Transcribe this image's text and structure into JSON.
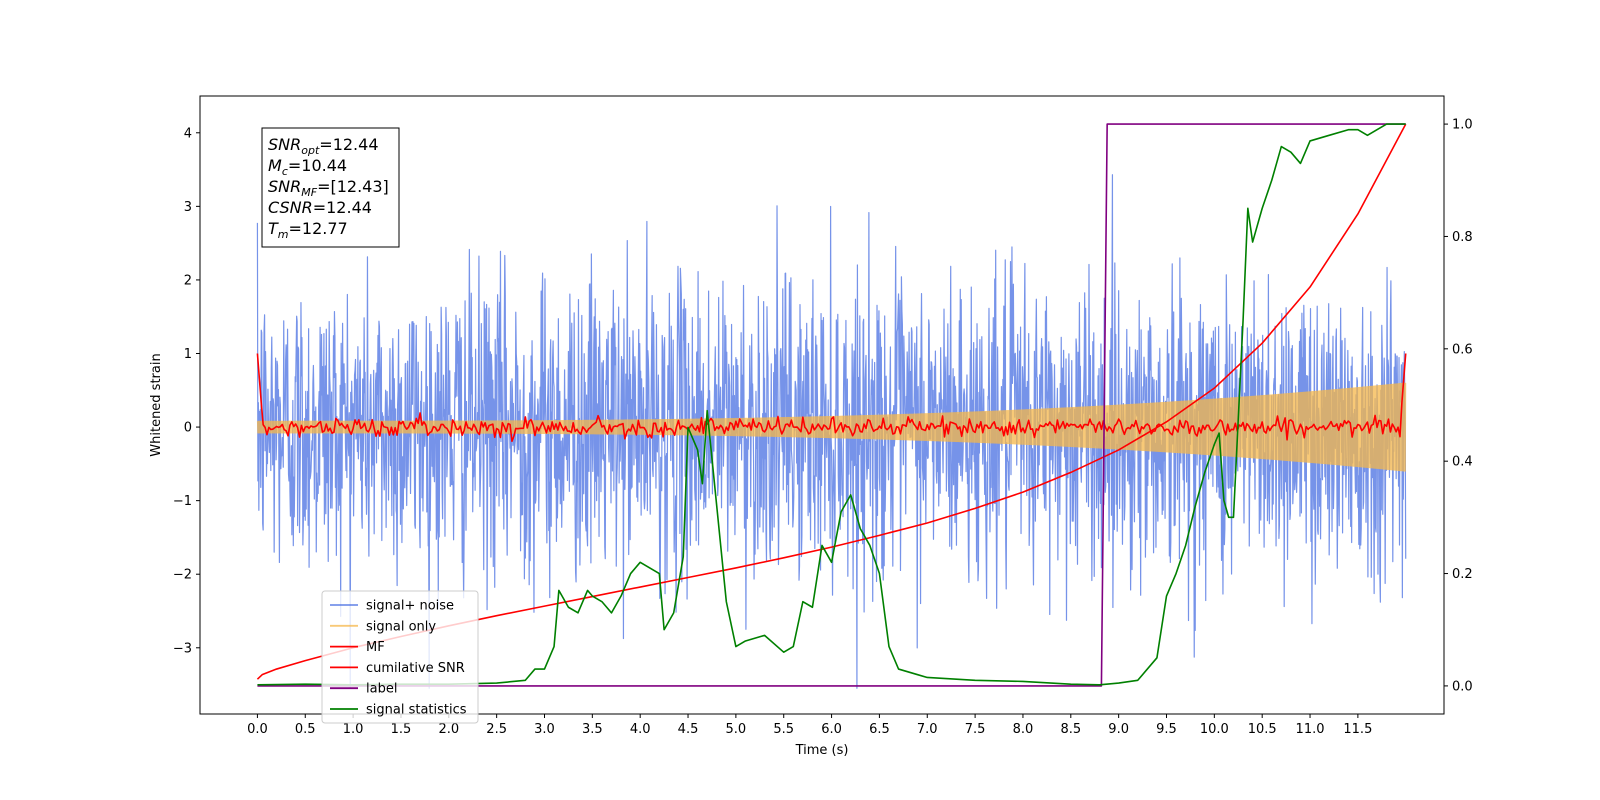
{
  "chart_data": {
    "type": "line",
    "title": "",
    "xlabel": "Time (s)",
    "ylabel": "Whitened strain",
    "y2label": "",
    "xlim": [
      -0.6,
      12.4
    ],
    "ylim": [
      -3.9,
      4.5
    ],
    "y2lim": [
      -0.05,
      1.05
    ],
    "x_ticks": [
      "0.0",
      "0.5",
      "1.0",
      "1.5",
      "2.0",
      "2.5",
      "3.0",
      "3.5",
      "4.0",
      "4.5",
      "5.0",
      "5.5",
      "6.0",
      "6.5",
      "7.0",
      "7.5",
      "8.0",
      "8.5",
      "9.0",
      "9.5",
      "10.0",
      "10.5",
      "11.0",
      "11.5"
    ],
    "y_ticks": [
      "−3",
      "−2",
      "−1",
      "0",
      "1",
      "2",
      "3",
      "4"
    ],
    "y2_ticks": [
      "0.0",
      "0.2",
      "0.4",
      "0.6",
      "0.8",
      "1.0"
    ],
    "grid": false,
    "legend_position": "lower-left",
    "annotation": {
      "lines": [
        {
          "base": "SNR",
          "sub": "opt",
          "value": "=12.44"
        },
        {
          "base": "M",
          "sub": "c",
          "value": "=10.44"
        },
        {
          "base": "SNR",
          "sub": "MF",
          "value": "=[12.43]"
        },
        {
          "base": "CSNR",
          "sub": "",
          "value": "=12.44"
        },
        {
          "base": "T",
          "sub": "m",
          "value": "=12.77"
        }
      ]
    },
    "series": [
      {
        "name": "signal+ noise",
        "axis": "left",
        "color": "#4169e1",
        "kind": "noise",
        "sigma": 1.0,
        "range": [
          0,
          12
        ]
      },
      {
        "name": "signal only",
        "axis": "left",
        "color": "#f5b74a",
        "kind": "chirp",
        "amp_start": 0.08,
        "amp_end": 0.6,
        "range": [
          0,
          12
        ]
      },
      {
        "name": "MF",
        "axis": "left",
        "color": "#ff0000",
        "kind": "mf",
        "start_value": 1.0,
        "end_value": 1.0,
        "range": [
          0,
          12
        ]
      },
      {
        "name": "cumilative SNR",
        "axis": "right",
        "color": "#ff0000",
        "kind": "curve",
        "x": [
          0.0,
          0.05,
          0.2,
          0.5,
          1.0,
          1.5,
          2.0,
          2.5,
          3.0,
          3.5,
          4.0,
          4.5,
          5.0,
          5.5,
          6.0,
          6.5,
          7.0,
          7.5,
          8.0,
          8.5,
          9.0,
          9.5,
          10.0,
          10.5,
          11.0,
          11.5,
          12.0
        ],
        "y": [
          0.012,
          0.02,
          0.03,
          0.045,
          0.068,
          0.088,
          0.107,
          0.125,
          0.142,
          0.159,
          0.176,
          0.193,
          0.21,
          0.228,
          0.247,
          0.268,
          0.29,
          0.316,
          0.345,
          0.38,
          0.42,
          0.47,
          0.53,
          0.61,
          0.71,
          0.84,
          1.0
        ]
      },
      {
        "name": "label",
        "axis": "right",
        "color": "#800080",
        "kind": "curve",
        "x": [
          0.0,
          8.82,
          8.88,
          12.0
        ],
        "y": [
          0.0,
          0.0,
          1.0,
          1.0
        ]
      },
      {
        "name": "signal statistics",
        "axis": "right",
        "color": "#008000",
        "kind": "curve",
        "x": [
          0.0,
          0.5,
          1.0,
          1.5,
          2.0,
          2.5,
          2.8,
          2.9,
          3.0,
          3.1,
          3.15,
          3.25,
          3.35,
          3.45,
          3.5,
          3.6,
          3.7,
          3.8,
          3.9,
          4.0,
          4.1,
          4.2,
          4.25,
          4.35,
          4.45,
          4.5,
          4.6,
          4.65,
          4.7,
          4.8,
          4.9,
          5.0,
          5.1,
          5.3,
          5.5,
          5.6,
          5.7,
          5.8,
          5.9,
          6.0,
          6.1,
          6.2,
          6.3,
          6.4,
          6.5,
          6.6,
          6.7,
          6.9,
          7.0,
          7.5,
          8.0,
          8.5,
          8.8,
          9.0,
          9.2,
          9.4,
          9.5,
          9.6,
          9.7,
          9.8,
          9.9,
          10.0,
          10.05,
          10.1,
          10.15,
          10.2,
          10.3,
          10.35,
          10.4,
          10.5,
          10.6,
          10.65,
          10.7,
          10.8,
          10.9,
          11.0,
          11.2,
          11.4,
          11.5,
          11.6,
          11.7,
          11.8,
          12.0
        ],
        "y": [
          0.002,
          0.003,
          0.002,
          0.003,
          0.003,
          0.005,
          0.01,
          0.03,
          0.03,
          0.07,
          0.17,
          0.14,
          0.13,
          0.17,
          0.16,
          0.15,
          0.13,
          0.16,
          0.2,
          0.22,
          0.21,
          0.2,
          0.1,
          0.13,
          0.23,
          0.46,
          0.42,
          0.36,
          0.49,
          0.32,
          0.15,
          0.07,
          0.08,
          0.09,
          0.06,
          0.07,
          0.15,
          0.14,
          0.25,
          0.22,
          0.31,
          0.34,
          0.28,
          0.25,
          0.2,
          0.07,
          0.03,
          0.02,
          0.015,
          0.01,
          0.008,
          0.003,
          0.002,
          0.005,
          0.01,
          0.05,
          0.16,
          0.2,
          0.25,
          0.32,
          0.38,
          0.43,
          0.45,
          0.33,
          0.3,
          0.3,
          0.65,
          0.85,
          0.79,
          0.85,
          0.9,
          0.93,
          0.96,
          0.95,
          0.93,
          0.97,
          0.98,
          0.99,
          0.99,
          0.98,
          0.99,
          1.0,
          1.0
        ]
      }
    ]
  }
}
